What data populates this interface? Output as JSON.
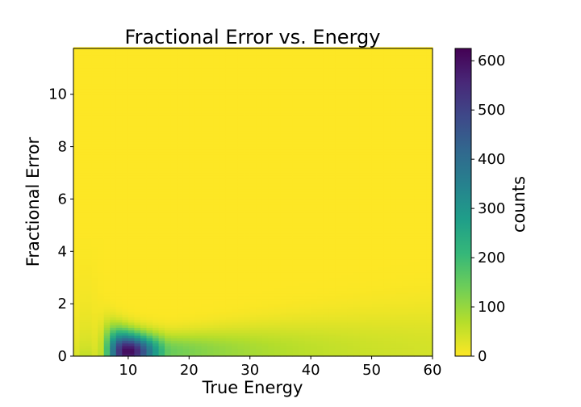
{
  "chart_data": {
    "type": "heatmap",
    "title": "Fractional Error vs. Energy",
    "xlabel": "True Energy",
    "ylabel": "Fractional Error",
    "xlim": [
      1,
      60
    ],
    "ylim": [
      0,
      11.75
    ],
    "xticks": [
      10,
      20,
      30,
      40,
      50,
      60
    ],
    "yticks": [
      0,
      2,
      4,
      6,
      8,
      10
    ],
    "colorbar": {
      "label": "counts",
      "range": [
        0,
        625
      ],
      "ticks": [
        0,
        100,
        200,
        300,
        400,
        500,
        600
      ],
      "colormap": "viridis_r"
    },
    "bins": {
      "x_width": 1,
      "y_width": 0.1
    },
    "density_model": {
      "peak_energy": 10,
      "peak_counts": 620,
      "ridge_y": 0.2,
      "description": "counts concentrated at fractional error 0-0.6, peaking near energy 8-12, tail to 60; broad low-count spread up to ~4 at energies 2-6"
    },
    "grid": false,
    "legend": "none"
  }
}
